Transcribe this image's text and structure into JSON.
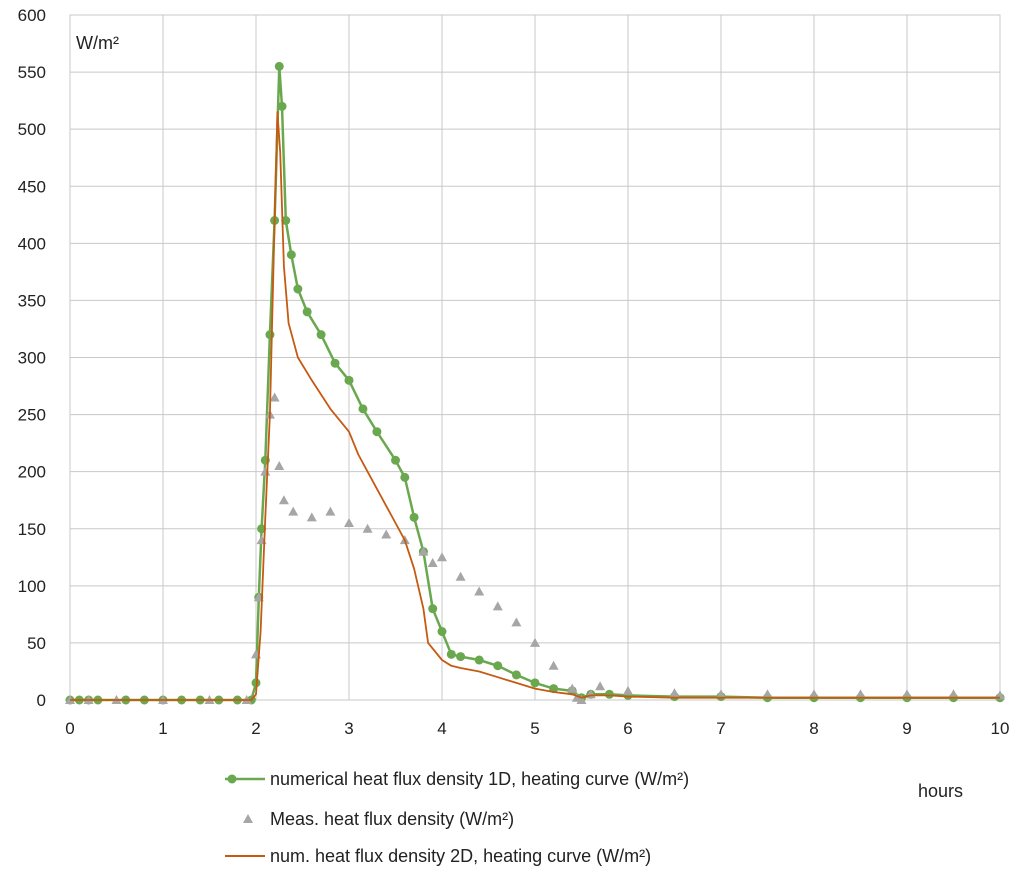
{
  "chart_data": {
    "type": "line",
    "ylabel": "W/m²",
    "xlabel": "hours",
    "xlim": [
      0,
      10
    ],
    "ylim": [
      0,
      600
    ],
    "x_ticks": [
      "0",
      "1",
      "2",
      "3",
      "4",
      "5",
      "6",
      "7",
      "8",
      "9",
      "10"
    ],
    "y_ticks": [
      "0",
      "50",
      "100",
      "150",
      "200",
      "250",
      "300",
      "350",
      "400",
      "450",
      "500",
      "550",
      "600"
    ],
    "grid": true,
    "legend_position": "bottom",
    "series": [
      {
        "name": "numerical heat flux density 1D, heating curve (W/m²)",
        "color": "#6aa84f",
        "marker": "circle",
        "x": [
          0,
          0.1,
          0.2,
          0.3,
          0.6,
          0.8,
          1.0,
          1.2,
          1.4,
          1.6,
          1.8,
          1.95,
          2.0,
          2.03,
          2.06,
          2.1,
          2.15,
          2.2,
          2.25,
          2.28,
          2.32,
          2.38,
          2.45,
          2.55,
          2.7,
          2.85,
          3.0,
          3.15,
          3.3,
          3.5,
          3.6,
          3.7,
          3.8,
          3.9,
          4.0,
          4.1,
          4.2,
          4.4,
          4.6,
          4.8,
          5.0,
          5.2,
          5.4,
          5.5,
          5.6,
          5.8,
          6.0,
          6.5,
          7.0,
          7.5,
          8.0,
          8.5,
          9.0,
          9.5,
          10.0
        ],
        "y": [
          0,
          0,
          0,
          0,
          0,
          0,
          0,
          0,
          0,
          0,
          0,
          0,
          15,
          90,
          150,
          210,
          320,
          420,
          555,
          520,
          420,
          390,
          360,
          340,
          320,
          295,
          280,
          255,
          235,
          210,
          195,
          160,
          130,
          80,
          60,
          40,
          38,
          35,
          30,
          22,
          15,
          10,
          8,
          2,
          5,
          5,
          4,
          3,
          3,
          2,
          2,
          2,
          2,
          2,
          2
        ]
      },
      {
        "name": "Meas. heat flux density (W/m²)",
        "color": "#a6a6a6",
        "marker": "triangle",
        "x": [
          0,
          0.2,
          0.5,
          1.0,
          1.5,
          1.9,
          2.0,
          2.03,
          2.06,
          2.1,
          2.15,
          2.2,
          2.25,
          2.3,
          2.4,
          2.6,
          2.8,
          3.0,
          3.2,
          3.4,
          3.6,
          3.8,
          3.9,
          4.0,
          4.2,
          4.4,
          4.6,
          4.8,
          5.0,
          5.2,
          5.4,
          5.45,
          5.5,
          5.6,
          5.7,
          6.0,
          6.5,
          7.0,
          7.5,
          8.0,
          8.5,
          9.0,
          9.5,
          10.0
        ],
        "y": [
          0,
          0,
          0,
          0,
          0,
          0,
          40,
          90,
          140,
          200,
          250,
          265,
          205,
          175,
          165,
          160,
          165,
          155,
          150,
          145,
          140,
          130,
          120,
          125,
          108,
          95,
          82,
          68,
          50,
          30,
          10,
          2,
          0,
          5,
          12,
          8,
          6,
          5,
          5,
          5,
          5,
          5,
          5,
          4
        ]
      },
      {
        "name": "num. heat flux density 2D, heating curve (W/m²)",
        "color": "#c55a11",
        "marker": "none",
        "x": [
          0,
          0.5,
          1.0,
          1.5,
          1.95,
          2.0,
          2.05,
          2.1,
          2.15,
          2.2,
          2.23,
          2.26,
          2.3,
          2.35,
          2.45,
          2.6,
          2.8,
          3.0,
          3.1,
          3.2,
          3.3,
          3.4,
          3.5,
          3.6,
          3.7,
          3.8,
          3.85,
          3.9,
          4.0,
          4.1,
          4.2,
          4.4,
          4.6,
          4.8,
          5.0,
          5.2,
          5.4,
          5.5,
          5.6,
          5.8,
          6.0,
          6.5,
          7.0,
          7.5,
          8.0,
          8.5,
          9.0,
          9.5,
          10.0
        ],
        "y": [
          0,
          0,
          0,
          0,
          0,
          5,
          60,
          160,
          250,
          420,
          515,
          480,
          380,
          330,
          300,
          280,
          255,
          235,
          215,
          200,
          185,
          170,
          155,
          140,
          115,
          80,
          50,
          45,
          35,
          30,
          28,
          25,
          20,
          15,
          10,
          7,
          5,
          2,
          4,
          4,
          3,
          2,
          2,
          2,
          2,
          2,
          2,
          2,
          2
        ]
      }
    ]
  }
}
